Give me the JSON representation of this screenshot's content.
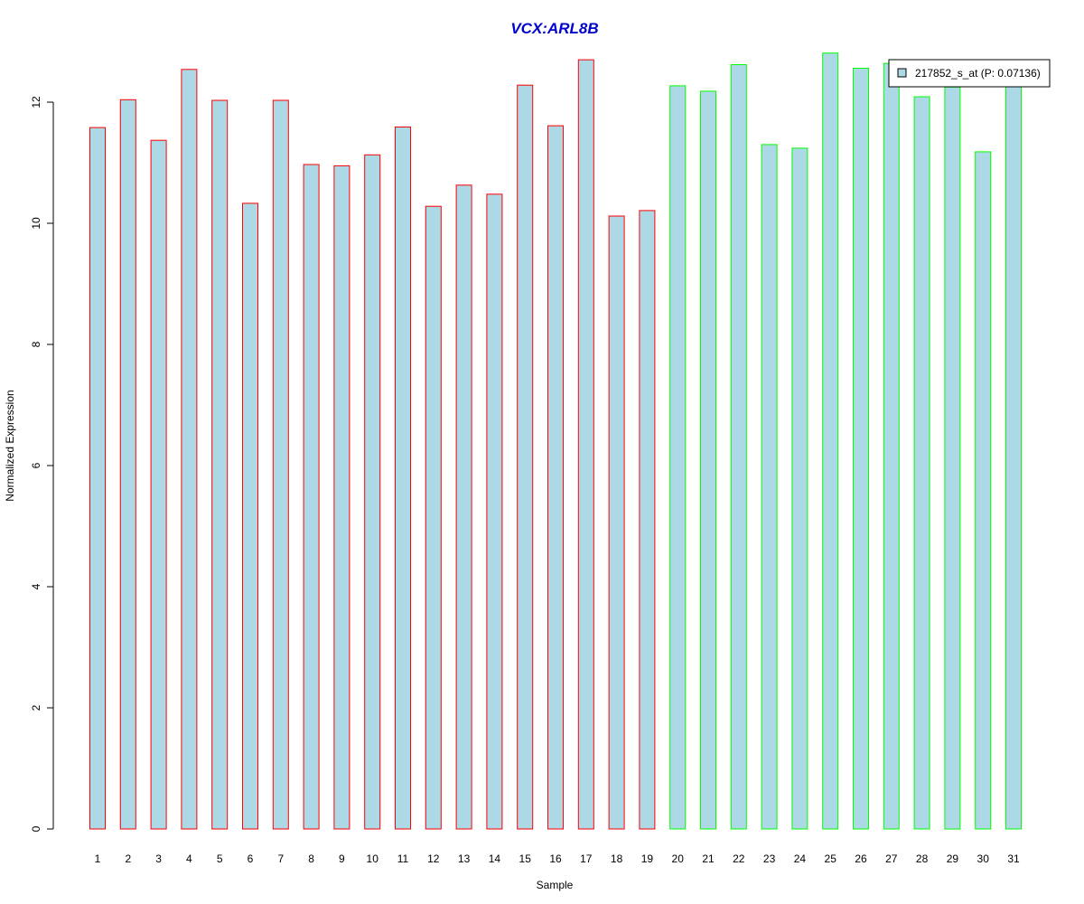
{
  "colors": {
    "title": "#0000cc",
    "bar_fill": "#add8e6",
    "group1_border": "#ff0000",
    "group2_border": "#00ff00",
    "axis": "#000000"
  },
  "chart_data": {
    "type": "bar",
    "title": "VCX:ARL8B",
    "xlabel": "Sample",
    "ylabel": "Normalized Expression",
    "ylim": [
      0,
      12.8
    ],
    "yticks": [
      0,
      2,
      4,
      6,
      8,
      10,
      12
    ],
    "grid": false,
    "legend": {
      "position": "top-right",
      "label": "217852_s_at (P: 0.07136)"
    },
    "categories": [
      "1",
      "2",
      "3",
      "4",
      "5",
      "6",
      "7",
      "8",
      "9",
      "10",
      "11",
      "12",
      "13",
      "14",
      "15",
      "16",
      "17",
      "18",
      "19",
      "20",
      "21",
      "22",
      "23",
      "24",
      "25",
      "26",
      "27",
      "28",
      "29",
      "30",
      "31"
    ],
    "series": [
      {
        "name": "217852_s_at (P: 0.07136)",
        "values": [
          11.58,
          12.04,
          11.37,
          12.54,
          12.03,
          10.33,
          12.03,
          10.97,
          10.95,
          11.13,
          11.59,
          10.28,
          10.63,
          10.48,
          12.28,
          11.61,
          12.7,
          10.12,
          10.21,
          12.27,
          12.18,
          12.62,
          11.3,
          11.24,
          12.81,
          12.56,
          12.64,
          12.09,
          12.25,
          11.18,
          12.38
        ],
        "groups": [
          1,
          1,
          1,
          1,
          1,
          1,
          1,
          1,
          1,
          1,
          1,
          1,
          1,
          1,
          1,
          1,
          1,
          1,
          1,
          2,
          2,
          2,
          2,
          2,
          2,
          2,
          2,
          2,
          2,
          2,
          2
        ]
      }
    ]
  }
}
